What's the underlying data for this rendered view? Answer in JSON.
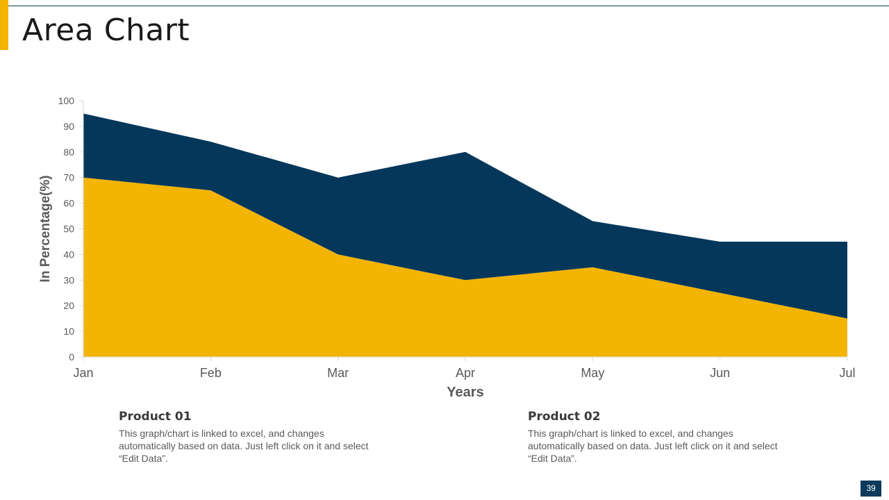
{
  "slide": {
    "title": "Area Chart",
    "page_number": "39"
  },
  "colors": {
    "accent": "#f4b404",
    "navy": "#05375a",
    "product01": "#f4b404",
    "product02": "#05375a"
  },
  "chart_data": {
    "type": "area",
    "stacked": true,
    "title": "",
    "xlabel": "Years",
    "ylabel": "In Percentage(%)",
    "categories": [
      "Jan",
      "Feb",
      "Mar",
      "Apr",
      "May",
      "Jun",
      "Jul"
    ],
    "ylim": [
      0,
      100
    ],
    "yticks": [
      0,
      10,
      20,
      30,
      40,
      50,
      60,
      70,
      80,
      90,
      100
    ],
    "grid": false,
    "legend": "none",
    "series": [
      {
        "name": "Product 01",
        "color": "#f4b404",
        "values": [
          70,
          65,
          40,
          30,
          35,
          25,
          15
        ]
      },
      {
        "name": "Product 02",
        "color": "#05375a",
        "values": [
          25,
          19,
          30,
          50,
          18,
          20,
          30
        ]
      }
    ]
  },
  "notes": [
    {
      "heading": "Product 01",
      "text": "This graph/chart is linked to excel, and changes automatically based on data. Just left click on it and select “Edit Data”."
    },
    {
      "heading": "Product 02",
      "text": "This graph/chart is linked to excel, and changes automatically based on data. Just left click on it and select “Edit Data”."
    }
  ]
}
